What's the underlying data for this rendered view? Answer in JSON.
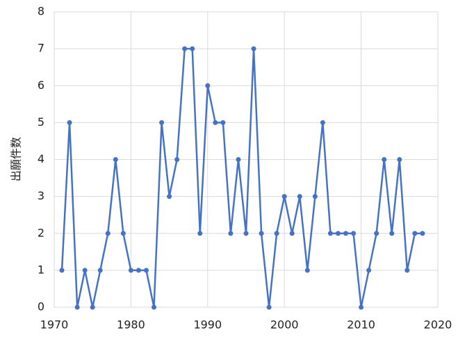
{
  "chart_data": {
    "type": "line",
    "y_label": "出願件数",
    "x": [
      1971,
      1972,
      1973,
      1974,
      1975,
      1976,
      1977,
      1978,
      1979,
      1980,
      1981,
      1982,
      1983,
      1984,
      1985,
      1986,
      1987,
      1988,
      1989,
      1990,
      1991,
      1992,
      1993,
      1994,
      1995,
      1996,
      1997,
      1998,
      1999,
      2000,
      2001,
      2002,
      2003,
      2004,
      2005,
      2006,
      2007,
      2008,
      2009,
      2010,
      2011,
      2012,
      2013,
      2014,
      2015,
      2016,
      2017,
      2018
    ],
    "values": [
      1,
      5,
      0,
      1,
      0,
      1,
      2,
      4,
      2,
      1,
      1,
      1,
      0,
      5,
      3,
      4,
      7,
      7,
      2,
      6,
      5,
      5,
      2,
      4,
      2,
      7,
      2,
      0,
      2,
      3,
      2,
      3,
      1,
      3,
      5,
      2,
      2,
      2,
      2,
      0,
      1,
      2,
      4,
      2,
      4,
      1,
      2,
      2
    ],
    "color": "#4472c4",
    "xlim": [
      1970,
      2020
    ],
    "xticks": [
      1970,
      1980,
      1990,
      2000,
      2010,
      2020
    ],
    "ylim": [
      0,
      8
    ],
    "yticks": [
      0,
      1,
      2,
      3,
      4,
      5,
      6,
      7,
      8
    ],
    "grid": true
  }
}
